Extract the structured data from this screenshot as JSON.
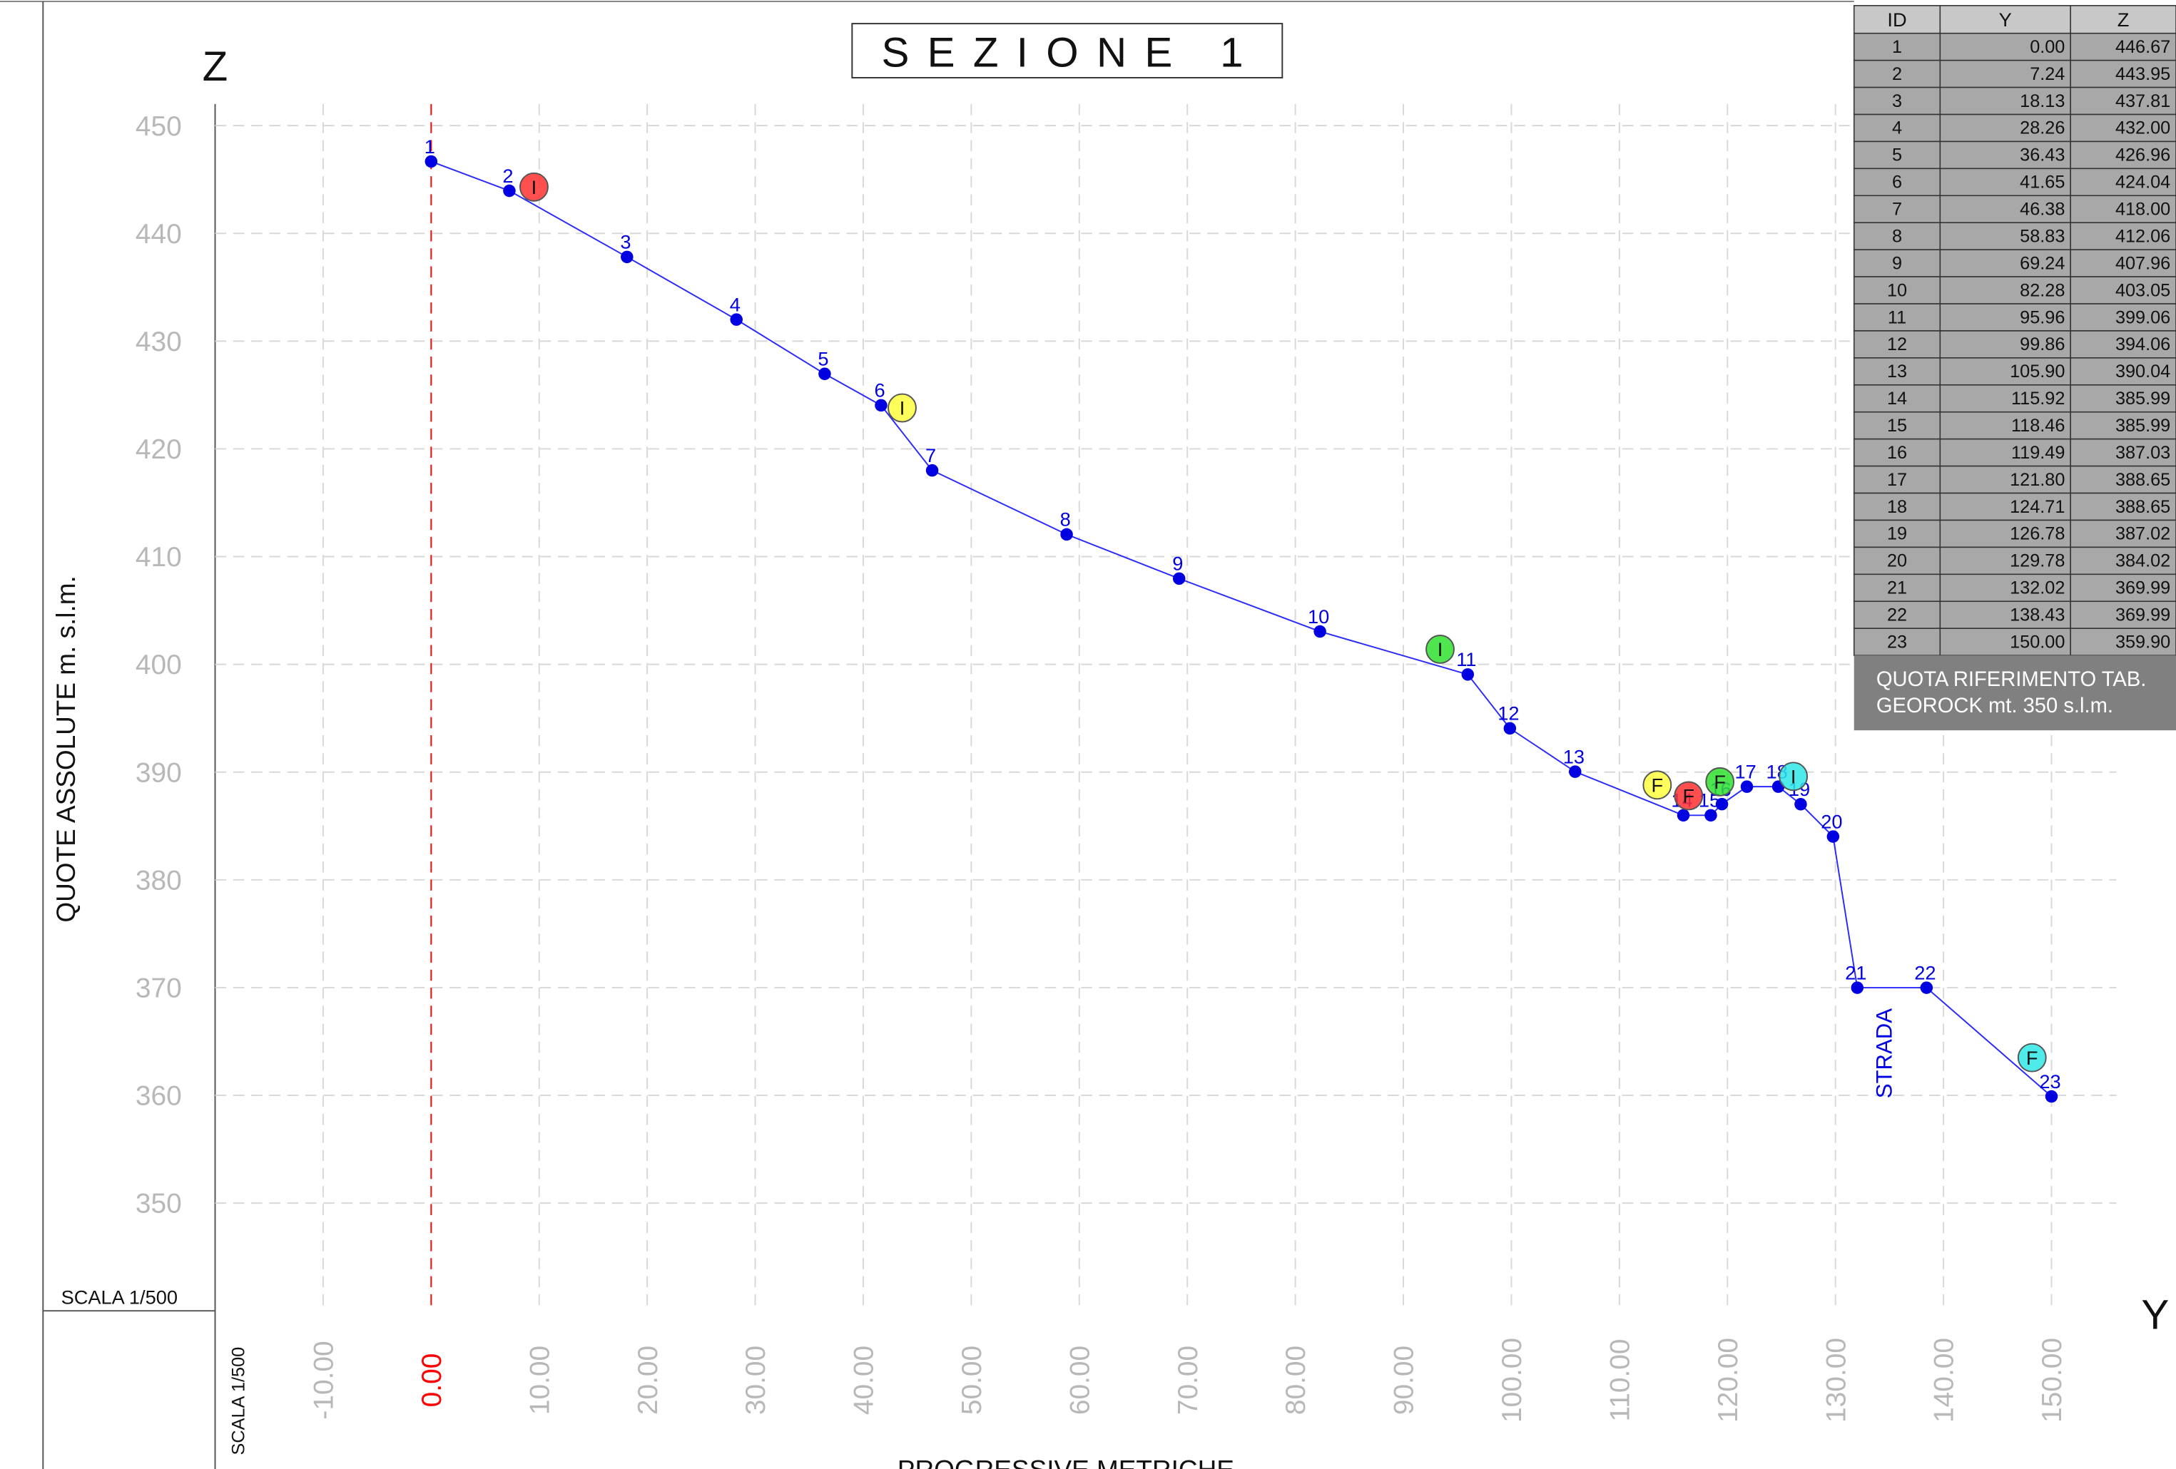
{
  "chart_data": {
    "type": "line",
    "title": "SEZIONE 1",
    "y_axis_letter": "Z",
    "x_axis_letter": "Y",
    "y_axis_label": "QUOTE ASSOLUTE m. s.l.m.",
    "x_axis_label": "PROGRESSIVE METRICHE",
    "scale_label": "SCALA 1/500",
    "labels": [
      "1",
      "2",
      "3",
      "4",
      "5",
      "6",
      "7",
      "8",
      "9",
      "10",
      "11",
      "12",
      "13",
      "14",
      "15",
      "16",
      "17",
      "18",
      "19",
      "20",
      "21",
      "22",
      "23"
    ],
    "x": [
      0.0,
      7.24,
      18.13,
      28.26,
      36.43,
      41.65,
      46.38,
      58.83,
      69.24,
      82.28,
      95.96,
      99.86,
      105.9,
      115.92,
      118.46,
      119.49,
      121.8,
      124.71,
      126.78,
      129.78,
      132.02,
      138.43,
      150.0
    ],
    "x_labels": [
      "0.00",
      "7.24",
      "18.13",
      "28.26",
      "36.43",
      "41.65",
      "46.38",
      "58.83",
      "69.24",
      "82.28",
      "95.96",
      "99.86",
      "105.90",
      "115.92",
      "118.46",
      "119.49",
      "121.80",
      "124.71",
      "126.78",
      "129.78",
      "132.02",
      "138.43",
      "150.00"
    ],
    "values": [
      446.67,
      443.95,
      437.81,
      432.0,
      426.96,
      424.04,
      418.0,
      412.06,
      407.96,
      403.05,
      399.06,
      394.06,
      390.04,
      385.99,
      385.99,
      387.03,
      388.65,
      388.65,
      387.02,
      384.02,
      369.99,
      369.99,
      359.9
    ],
    "value_labels": [
      "446.67",
      "443.95",
      "437.81",
      "432.00",
      "426.96",
      "424.04",
      "418.00",
      "412.06",
      "407.96",
      "403.05",
      "399.06",
      "394.06",
      "390.04",
      "385.99",
      "385.99",
      "387.03",
      "388.65",
      "388.65",
      "387.02",
      "384.02",
      "369.99",
      "369.99",
      "359.90"
    ],
    "color": "#2a2aff",
    "point_color": "#0000e0",
    "xlim": [
      -20,
      156
    ],
    "ylim": [
      340,
      452
    ],
    "xticks": [
      {
        "value": -10,
        "label": "-10.00"
      },
      {
        "value": 0,
        "label": "0.00"
      },
      {
        "value": 10,
        "label": "10.00"
      },
      {
        "value": 20,
        "label": "20.00"
      },
      {
        "value": 30,
        "label": "30.00"
      },
      {
        "value": 40,
        "label": "40.00"
      },
      {
        "value": 50,
        "label": "50.00"
      },
      {
        "value": 60,
        "label": "60.00"
      },
      {
        "value": 70,
        "label": "70.00"
      },
      {
        "value": 80,
        "label": "80.00"
      },
      {
        "value": 90,
        "label": "90.00"
      },
      {
        "value": 100,
        "label": "100.00"
      },
      {
        "value": 110,
        "label": "110.00"
      },
      {
        "value": 120,
        "label": "120.00"
      },
      {
        "value": 130,
        "label": "130.00"
      },
      {
        "value": 140,
        "label": "140.00"
      },
      {
        "value": 150,
        "label": "150.00"
      }
    ],
    "yticks": [
      350,
      360,
      370,
      380,
      390,
      400,
      410,
      420,
      430,
      440,
      450
    ],
    "grid": true,
    "zero_line_color": "#ff0000",
    "markers": [
      {
        "label": "I",
        "x": 9.52,
        "y": 444.3,
        "color": "#ff3030"
      },
      {
        "label": "I",
        "x": 43.6,
        "y": 423.8,
        "color": "#ffff40"
      },
      {
        "label": "I",
        "x": 93.4,
        "y": 401.4,
        "color": "#30e030"
      },
      {
        "label": "F",
        "x": 113.5,
        "y": 388.8,
        "color": "#ffff40"
      },
      {
        "label": "F",
        "x": 116.4,
        "y": 387.8,
        "color": "#ff3030"
      },
      {
        "label": "F",
        "x": 119.3,
        "y": 389.1,
        "color": "#30e030"
      },
      {
        "label": "I",
        "x": 126.1,
        "y": 389.6,
        "color": "#30e8e8"
      },
      {
        "label": "F",
        "x": 148.2,
        "y": 363.5,
        "color": "#30e8e8"
      }
    ],
    "annotation": {
      "text": "STRADA",
      "x": 135.2,
      "y": 363.9
    },
    "table_header": [
      "ID",
      "Y",
      "Z"
    ],
    "note": [
      "QUOTA RIFERIMENTO TAB.",
      "GEOROCK mt. 350 s.l.m."
    ]
  }
}
